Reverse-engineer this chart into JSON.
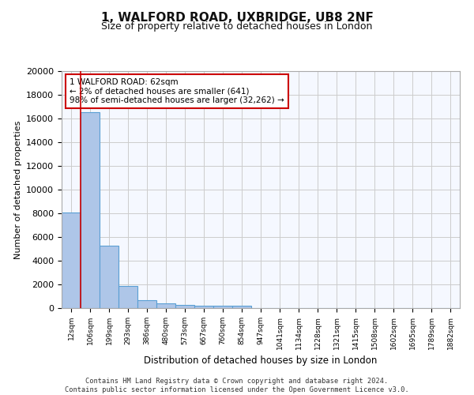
{
  "title": "1, WALFORD ROAD, UXBRIDGE, UB8 2NF",
  "subtitle": "Size of property relative to detached houses in London",
  "xlabel": "Distribution of detached houses by size in London",
  "ylabel": "Number of detached properties",
  "bar_color": "#aec6e8",
  "bar_edge_color": "#5a9fd4",
  "grid_color": "#cccccc",
  "background_color": "#f5f8ff",
  "vline_color": "#cc0000",
  "footer": "Contains HM Land Registry data © Crown copyright and database right 2024.\nContains public sector information licensed under the Open Government Licence v3.0.",
  "bin_labels": [
    "12sqm",
    "106sqm",
    "199sqm",
    "293sqm",
    "386sqm",
    "480sqm",
    "573sqm",
    "667sqm",
    "760sqm",
    "854sqm",
    "947sqm",
    "1041sqm",
    "1134sqm",
    "1228sqm",
    "1321sqm",
    "1415sqm",
    "1508sqm",
    "1602sqm",
    "1695sqm",
    "1789sqm",
    "1882sqm"
  ],
  "bar_heights": [
    8100,
    16500,
    5300,
    1850,
    700,
    370,
    280,
    230,
    210,
    170,
    0,
    0,
    0,
    0,
    0,
    0,
    0,
    0,
    0,
    0,
    0
  ],
  "annotation_text": "1 WALFORD ROAD: 62sqm\n← 2% of detached houses are smaller (641)\n98% of semi-detached houses are larger (32,262) →",
  "vline_x": 0.5,
  "ylim": [
    0,
    20000
  ],
  "yticks": [
    0,
    2000,
    4000,
    6000,
    8000,
    10000,
    12000,
    14000,
    16000,
    18000,
    20000
  ]
}
